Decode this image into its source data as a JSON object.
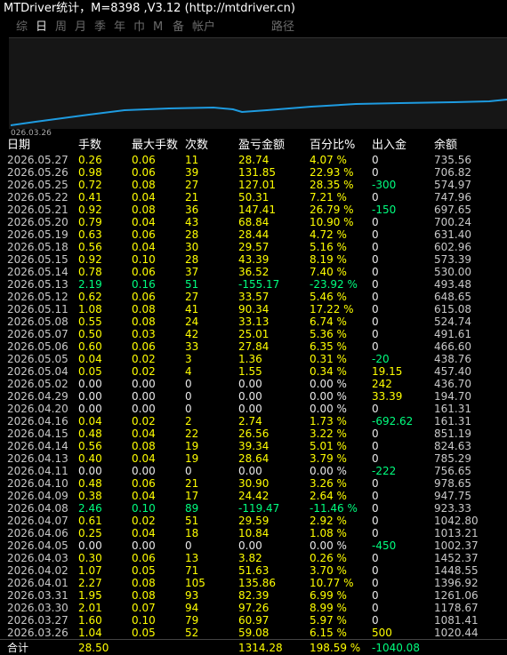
{
  "header": {
    "title": "MTDriver统计，M=8398 ,V3.12 (http://mtdriver.cn)"
  },
  "tabs": [
    "综",
    "日",
    "周",
    "月",
    "季",
    "年",
    "巾",
    "M",
    "备",
    "帐户",
    "路径"
  ],
  "chart": {
    "date_label": "026.03.26"
  },
  "table": {
    "columns": [
      "日期",
      "手数",
      "最大手数",
      "次数",
      "盈亏金额",
      "百分比%",
      "出入金",
      "余额"
    ],
    "rows": [
      [
        "2026.05.27",
        "0.26",
        "0.06",
        "11",
        "28.74",
        "4.07 %",
        "0",
        "735.56"
      ],
      [
        "2026.05.26",
        "0.98",
        "0.06",
        "39",
        "131.85",
        "22.93 %",
        "0",
        "706.82"
      ],
      [
        "2026.05.25",
        "0.72",
        "0.08",
        "27",
        "127.01",
        "28.35 %",
        "-300",
        "574.97"
      ],
      [
        "2026.05.22",
        "0.41",
        "0.04",
        "21",
        "50.31",
        "7.21 %",
        "0",
        "747.96"
      ],
      [
        "2026.05.21",
        "0.92",
        "0.08",
        "36",
        "147.41",
        "26.79 %",
        "-150",
        "697.65"
      ],
      [
        "2026.05.20",
        "0.79",
        "0.04",
        "43",
        "68.84",
        "10.90 %",
        "0",
        "700.24"
      ],
      [
        "2026.05.19",
        "0.63",
        "0.06",
        "28",
        "28.44",
        "4.72 %",
        "0",
        "631.40"
      ],
      [
        "2026.05.18",
        "0.56",
        "0.04",
        "30",
        "29.57",
        "5.16 %",
        "0",
        "602.96"
      ],
      [
        "2026.05.15",
        "0.92",
        "0.10",
        "28",
        "43.39",
        "8.19 %",
        "0",
        "573.39"
      ],
      [
        "2026.05.14",
        "0.78",
        "0.06",
        "37",
        "36.52",
        "7.40 %",
        "0",
        "530.00"
      ],
      [
        "2026.05.13",
        "2.19",
        "0.16",
        "51",
        "-155.17",
        "-23.92 %",
        "0",
        "493.48"
      ],
      [
        "2026.05.12",
        "0.62",
        "0.06",
        "27",
        "33.57",
        "5.46 %",
        "0",
        "648.65"
      ],
      [
        "2026.05.11",
        "1.08",
        "0.08",
        "41",
        "90.34",
        "17.22 %",
        "0",
        "615.08"
      ],
      [
        "2026.05.08",
        "0.55",
        "0.08",
        "24",
        "33.13",
        "6.74 %",
        "0",
        "524.74"
      ],
      [
        "2026.05.07",
        "0.50",
        "0.03",
        "42",
        "25.01",
        "5.36 %",
        "0",
        "491.61"
      ],
      [
        "2026.05.06",
        "0.60",
        "0.06",
        "33",
        "27.84",
        "6.35 %",
        "0",
        "466.60"
      ],
      [
        "2026.05.05",
        "0.04",
        "0.02",
        "3",
        "1.36",
        "0.31 %",
        "-20",
        "438.76"
      ],
      [
        "2026.05.04",
        "0.05",
        "0.02",
        "4",
        "1.55",
        "0.34 %",
        "19.15",
        "457.40"
      ],
      [
        "2026.05.02",
        "0.00",
        "0.00",
        "0",
        "0.00",
        "0.00 %",
        "242",
        "436.70"
      ],
      [
        "2026.04.29",
        "0.00",
        "0.00",
        "0",
        "0.00",
        "0.00 %",
        "33.39",
        "194.70"
      ],
      [
        "2026.04.20",
        "0.00",
        "0.00",
        "0",
        "0.00",
        "0.00 %",
        "0",
        "161.31"
      ],
      [
        "2026.04.16",
        "0.04",
        "0.02",
        "2",
        "2.74",
        "1.73 %",
        "-692.62",
        "161.31"
      ],
      [
        "2026.04.15",
        "0.48",
        "0.04",
        "22",
        "26.56",
        "3.22 %",
        "0",
        "851.19"
      ],
      [
        "2026.04.14",
        "0.56",
        "0.08",
        "19",
        "39.34",
        "5.01 %",
        "0",
        "824.63"
      ],
      [
        "2026.04.13",
        "0.40",
        "0.04",
        "19",
        "28.64",
        "3.79 %",
        "0",
        "785.29"
      ],
      [
        "2026.04.11",
        "0.00",
        "0.00",
        "0",
        "0.00",
        "0.00 %",
        "-222",
        "756.65"
      ],
      [
        "2026.04.10",
        "0.48",
        "0.06",
        "21",
        "30.90",
        "3.26 %",
        "0",
        "978.65"
      ],
      [
        "2026.04.09",
        "0.38",
        "0.04",
        "17",
        "24.42",
        "2.64 %",
        "0",
        "947.75"
      ],
      [
        "2026.04.08",
        "2.46",
        "0.10",
        "89",
        "-119.47",
        "-11.46 %",
        "0",
        "923.33"
      ],
      [
        "2026.04.07",
        "0.61",
        "0.02",
        "51",
        "29.59",
        "2.92 %",
        "0",
        "1042.80"
      ],
      [
        "2026.04.06",
        "0.25",
        "0.04",
        "18",
        "10.84",
        "1.08 %",
        "0",
        "1013.21"
      ],
      [
        "2026.04.05",
        "0.00",
        "0.00",
        "0",
        "0.00",
        "0.00 %",
        "-450",
        "1002.37"
      ],
      [
        "2026.04.03",
        "0.30",
        "0.06",
        "13",
        "3.82",
        "0.26 %",
        "0",
        "1452.37"
      ],
      [
        "2026.04.02",
        "1.07",
        "0.05",
        "71",
        "51.63",
        "3.70 %",
        "0",
        "1448.55"
      ],
      [
        "2026.04.01",
        "2.27",
        "0.08",
        "105",
        "135.86",
        "10.77 %",
        "0",
        "1396.92"
      ],
      [
        "2026.03.31",
        "1.95",
        "0.08",
        "93",
        "82.39",
        "6.99 %",
        "0",
        "1261.06"
      ],
      [
        "2026.03.30",
        "2.01",
        "0.07",
        "94",
        "97.26",
        "8.99 %",
        "0",
        "1178.67"
      ],
      [
        "2026.03.27",
        "1.60",
        "0.10",
        "79",
        "60.97",
        "5.97 %",
        "0",
        "1081.41"
      ],
      [
        "2026.03.26",
        "1.04",
        "0.05",
        "52",
        "59.08",
        "6.15 %",
        "500",
        "1020.44"
      ]
    ],
    "total": {
      "label": "合计",
      "lots": "28.50",
      "pnl": "1314.28",
      "pct": "198.59 %",
      "flow": "-1040.08"
    }
  }
}
